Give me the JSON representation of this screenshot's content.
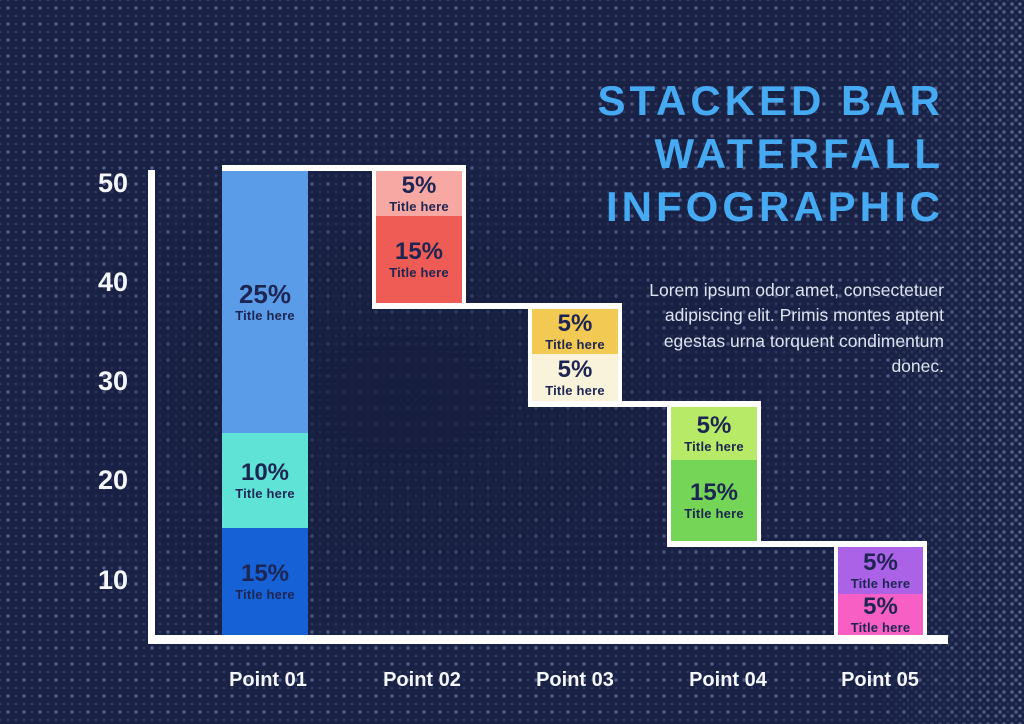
{
  "title": {
    "lines": [
      "STACKED BAR",
      "WATERFALL",
      "INFOGRAPHIC"
    ]
  },
  "description": "Lorem ipsum odor amet, consectetuer adipiscing elit. Primis montes aptent egestas urna torquent condimentum donec.",
  "colors": {
    "background": "#192245",
    "title_text": "#45aaf2",
    "body_text": "#dde4f0",
    "axis": "#ffffff",
    "bar_label_text": "#1d2552"
  },
  "chart_data": {
    "type": "bar",
    "subtype": "stacked_waterfall",
    "title": "Stacked Bar Waterfall Infographic",
    "categories": [
      "Point 01",
      "Point 02",
      "Point 03",
      "Point 04",
      "Point 05"
    ],
    "y_ticks": [
      50,
      40,
      30,
      20,
      10
    ],
    "ylim": [
      0,
      52
    ],
    "grid": false,
    "legend": false,
    "bars": [
      {
        "category": "Point 01",
        "segments_top_to_bottom": [
          {
            "value_pct": 25,
            "label": "Title here",
            "color": "#5b9ce8"
          },
          {
            "value_pct": 10,
            "label": "Title here",
            "color": "#5fe3d6"
          },
          {
            "value_pct": 15,
            "label": "Title here",
            "color": "#1661d6"
          }
        ]
      },
      {
        "category": "Point 02",
        "segments_top_to_bottom": [
          {
            "value_pct": 5,
            "label": "Title here",
            "color": "#f8a8a3"
          },
          {
            "value_pct": 15,
            "label": "Title here",
            "color": "#ee5c55"
          }
        ]
      },
      {
        "category": "Point 03",
        "segments_top_to_bottom": [
          {
            "value_pct": 5,
            "label": "Title here",
            "color": "#f2c952"
          },
          {
            "value_pct": 5,
            "label": "Title here",
            "color": "#faf3dc"
          }
        ]
      },
      {
        "category": "Point 04",
        "segments_top_to_bottom": [
          {
            "value_pct": 5,
            "label": "Title here",
            "color": "#b7ea67"
          },
          {
            "value_pct": 15,
            "label": "Title here",
            "color": "#74d556"
          }
        ]
      },
      {
        "category": "Point 05",
        "segments_top_to_bottom": [
          {
            "value_pct": 5,
            "label": "Title here",
            "color": "#ab62e6"
          },
          {
            "value_pct": 5,
            "label": "Title here",
            "color": "#f75fc4"
          }
        ]
      }
    ]
  }
}
